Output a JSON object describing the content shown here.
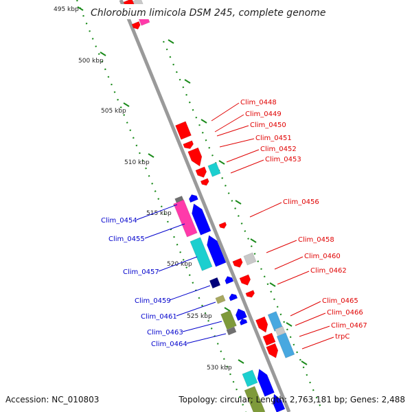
{
  "header": {
    "title": "Chlorobium limicola DSM 245, complete genome"
  },
  "footer": {
    "accession": "Accession: NC_010803",
    "summary": "Topology: circular; Length: 2,763,181 bp; Genes: 2,488"
  },
  "colors": {
    "backbone": "#9a9a9a",
    "tick": "#1a8a1a",
    "forward_label": "#e00000",
    "reverse_label": "#0000cc",
    "red": "#ff0000",
    "blue": "#0000ff",
    "cyan": "#1ccfcf",
    "magenta": "#ff3aaa",
    "gray": "#c8c8c8",
    "darkgray": "#707070",
    "navy": "#00007a",
    "olive": "#a8a860",
    "green": "#7e9a3a",
    "skyblue": "#48a8e0"
  },
  "scale_labels": [
    "495 kbp",
    "500 kbp",
    "505 kbp",
    "510 kbp",
    "515 kbp",
    "520 kbp",
    "525 kbp",
    "530 kbp"
  ],
  "forward_genes": [
    "Clim_0448",
    "Clim_0449",
    "Clim_0450",
    "Clim_0451",
    "Clim_0452",
    "Clim_0453",
    "Clim_0456",
    "Clim_0458",
    "Clim_0460",
    "Clim_0462",
    "Clim_0465",
    "Clim_0466",
    "Clim_0467",
    "trpC"
  ],
  "reverse_genes": [
    "Clim_0454",
    "Clim_0455",
    "Clim_0457",
    "Clim_0459",
    "Clim_0461",
    "Clim_0463",
    "Clim_0464"
  ]
}
